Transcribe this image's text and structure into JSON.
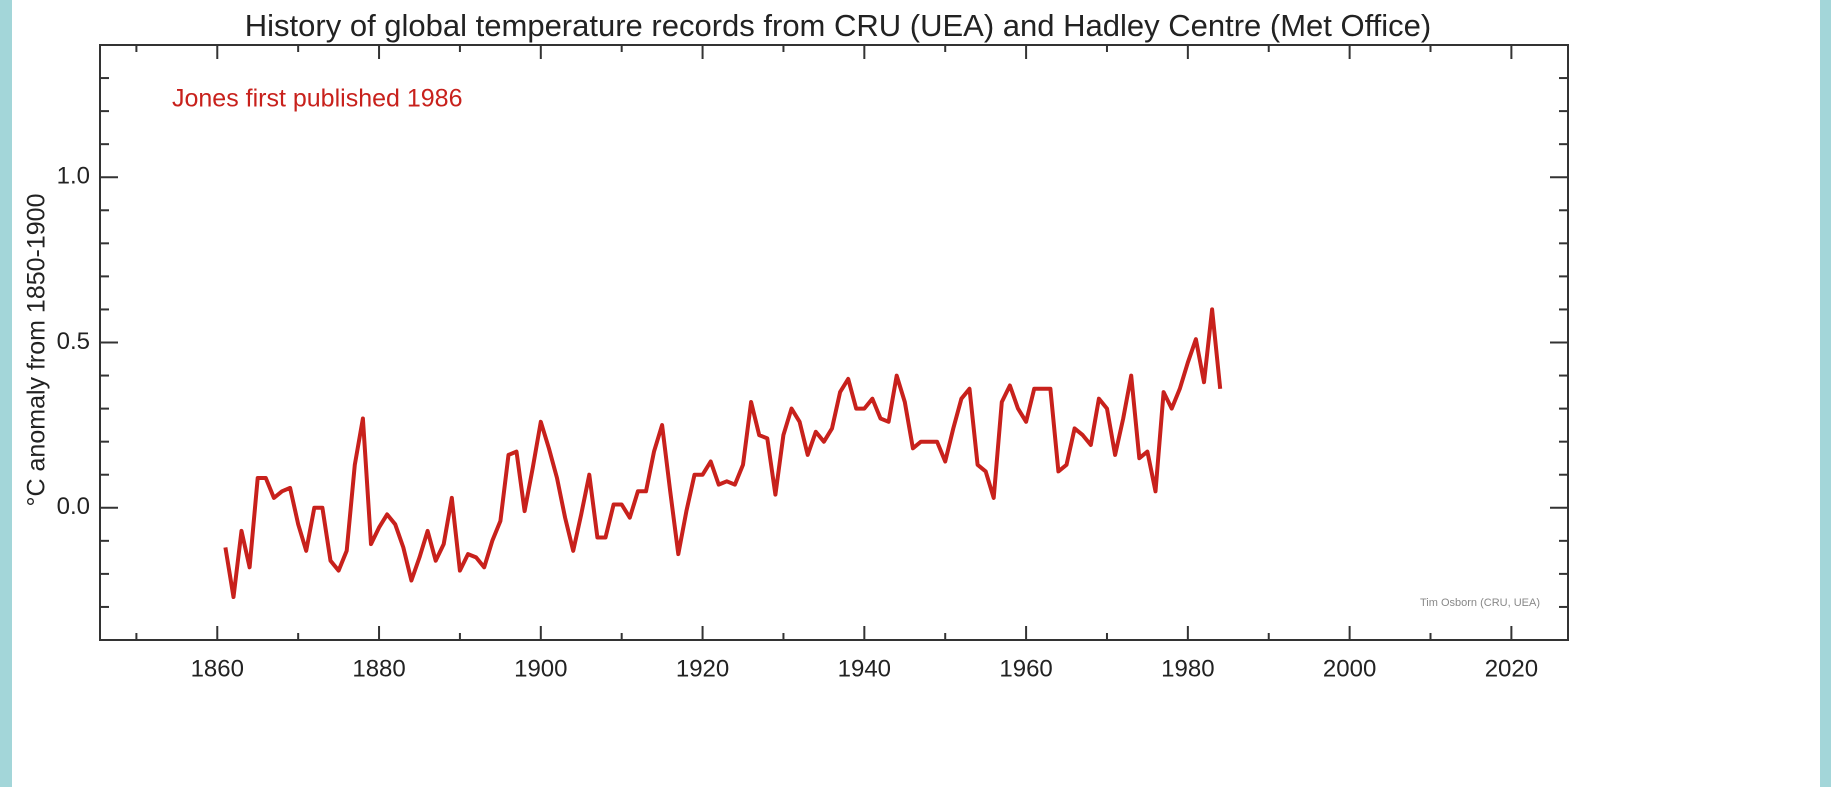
{
  "chart_data": {
    "type": "line",
    "title": "History of global temperature records from CRU (UEA) and Hadley Centre (Met Office)",
    "y_label": "°C anomaly from 1850-1900",
    "annotations": [
      "Jones first published 1986",
      "Tim Osborn (CRU, UEA)"
    ],
    "color": "#c8211c",
    "x": [
      1861,
      1862,
      1863,
      1864,
      1865,
      1866,
      1867,
      1868,
      1869,
      1870,
      1871,
      1872,
      1873,
      1874,
      1875,
      1876,
      1877,
      1878,
      1879,
      1880,
      1881,
      1882,
      1883,
      1884,
      1885,
      1886,
      1887,
      1888,
      1889,
      1890,
      1891,
      1892,
      1893,
      1894,
      1895,
      1896,
      1897,
      1898,
      1899,
      1900,
      1901,
      1902,
      1903,
      1904,
      1905,
      1906,
      1907,
      1908,
      1909,
      1910,
      1911,
      1912,
      1913,
      1914,
      1915,
      1916,
      1917,
      1918,
      1919,
      1920,
      1921,
      1922,
      1923,
      1924,
      1925,
      1926,
      1927,
      1928,
      1929,
      1930,
      1931,
      1932,
      1933,
      1934,
      1935,
      1936,
      1937,
      1938,
      1939,
      1940,
      1941,
      1942,
      1943,
      1944,
      1945,
      1946,
      1947,
      1948,
      1949,
      1950,
      1951,
      1952,
      1953,
      1954,
      1955,
      1956,
      1957,
      1958,
      1959,
      1960,
      1961,
      1962,
      1963,
      1964,
      1965,
      1966,
      1967,
      1968,
      1969,
      1970,
      1971,
      1972,
      1973,
      1974,
      1975,
      1976,
      1977,
      1978,
      1979,
      1980,
      1981,
      1982,
      1983,
      1984
    ],
    "values": [
      -0.12,
      -0.27,
      -0.07,
      -0.18,
      0.09,
      0.09,
      0.03,
      0.05,
      0.06,
      -0.05,
      -0.13,
      0.0,
      0.0,
      -0.16,
      -0.19,
      -0.13,
      0.13,
      0.27,
      -0.11,
      -0.06,
      -0.02,
      -0.05,
      -0.12,
      -0.22,
      -0.15,
      -0.07,
      -0.16,
      -0.11,
      0.03,
      -0.19,
      -0.14,
      -0.15,
      -0.18,
      -0.1,
      -0.04,
      0.16,
      0.17,
      -0.01,
      0.12,
      0.26,
      0.18,
      0.09,
      -0.03,
      -0.13,
      -0.02,
      0.1,
      -0.09,
      -0.09,
      0.01,
      0.01,
      -0.03,
      0.05,
      0.05,
      0.17,
      0.25,
      0.05,
      -0.14,
      -0.01,
      0.1,
      0.1,
      0.14,
      0.07,
      0.08,
      0.07,
      0.13,
      0.32,
      0.22,
      0.21,
      0.04,
      0.22,
      0.3,
      0.26,
      0.16,
      0.23,
      0.2,
      0.24,
      0.35,
      0.39,
      0.3,
      0.3,
      0.33,
      0.27,
      0.26,
      0.4,
      0.32,
      0.18,
      0.2,
      0.2,
      0.2,
      0.14,
      0.24,
      0.33,
      0.36,
      0.13,
      0.11,
      0.03,
      0.32,
      0.37,
      0.3,
      0.26,
      0.36,
      0.36,
      0.36,
      0.11,
      0.13,
      0.24,
      0.22,
      0.19,
      0.33,
      0.3,
      0.16,
      0.27,
      0.4,
      0.15,
      0.17,
      0.05,
      0.35,
      0.3,
      0.36,
      0.44,
      0.51,
      0.38,
      0.6,
      0.36
    ],
    "xlim": [
      1845.5,
      2027
    ],
    "ylim": [
      -0.4,
      1.4
    ],
    "xticks": [
      1860,
      1880,
      1900,
      1920,
      1940,
      1960,
      1980,
      2000,
      2020
    ],
    "yticks": [
      {
        "value": 0,
        "label": "0.0"
      },
      0.5,
      {
        "value": 1,
        "label": "1.0"
      }
    ],
    "x_minor_ticks": [
      1850,
      1870,
      1890,
      1910,
      1930,
      1950,
      1970,
      1990,
      2010
    ],
    "y_minor_ticks": [
      -0.3,
      -0.2,
      -0.1,
      0.1,
      0.2,
      0.3,
      0.4,
      0.6,
      0.7,
      0.8,
      0.9,
      1.1,
      1.2,
      1.3
    ]
  }
}
